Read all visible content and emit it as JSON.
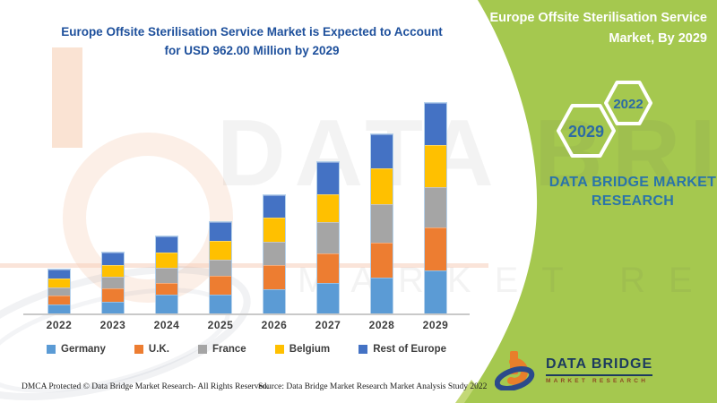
{
  "main_title": {
    "line1": "Europe Offsite Sterilisation Service Market is Expected to Account",
    "line2": "for USD 962.00 Million by 2029"
  },
  "panel": {
    "title_line1": "Europe Offsite Sterilisation Service",
    "title_line2": "Market, By 2029",
    "hexagon_large_label": "2029",
    "hexagon_small_label": "2022",
    "brand_text": "DATA BRIDGE MARKET RESEARCH",
    "logo_name": "DATA BRIDGE",
    "logo_subtitle": "MARKET RESEARCH"
  },
  "watermark": {
    "text_primary": "DATA BRIDGE",
    "text_secondary": "MARKET RESEARCH"
  },
  "footer": {
    "dmca": "DMCA Protected © Data Bridge Market Research- All Rights Reserved.",
    "source": "Source: Data Bridge Market Research Market Analysis Study 2022"
  },
  "colors": {
    "panel_green": "#a5c84f",
    "panel_green_light": "#c3d876",
    "title_blue": "#1e509c",
    "brand_blue": "#2a74a9",
    "hexagon_text_blue": "#2d6ba3",
    "logo_navy": "#1c3a5f",
    "logo_orange": "#e87f2b",
    "axis_label_gray": "#3d3d3d"
  },
  "chart_data": {
    "type": "bar",
    "stacked": true,
    "title": "Europe Offsite Sterilisation Service Market is Expected to Account for USD 962.00 Million by 2029",
    "unit": "USD Million",
    "categories": [
      "2022",
      "2023",
      "2024",
      "2025",
      "2026",
      "2027",
      "2028",
      "2029"
    ],
    "series": [
      {
        "name": "Germany",
        "color": "#5B9BD5",
        "values": [
          41,
          55,
          85,
          85,
          112,
          139,
          164,
          196
        ]
      },
      {
        "name": "U.K.",
        "color": "#ED7D31",
        "values": [
          41,
          61,
          55,
          86,
          112,
          134,
          160,
          197
        ]
      },
      {
        "name": "France",
        "color": "#A5A5A5",
        "values": [
          37,
          55,
          68,
          75,
          107,
          144,
          175,
          185
        ]
      },
      {
        "name": "Belgium",
        "color": "#FFC000",
        "values": [
          41,
          55,
          68,
          85,
          112,
          126,
          164,
          193
        ]
      },
      {
        "name": "Rest of Europe",
        "color": "#4472C4",
        "values": [
          41,
          57,
          73,
          86,
          104,
          146,
          157,
          191
        ]
      }
    ],
    "totals_estimated": [
      201,
      283,
      349,
      417,
      547,
      689,
      820,
      962
    ],
    "final_year_total_from_title": 962,
    "ylim": [
      0,
      1000
    ],
    "y_axis_visible": false,
    "grid": false,
    "legend_position": "bottom"
  }
}
